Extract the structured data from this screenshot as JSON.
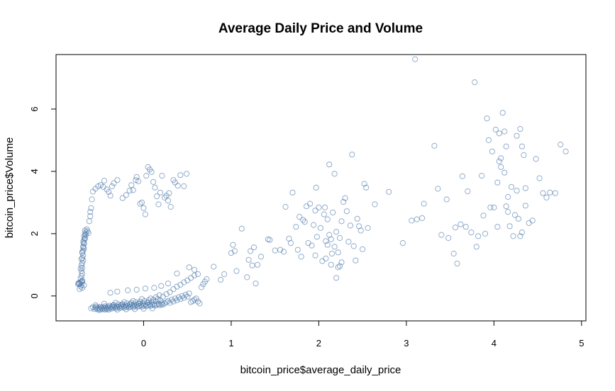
{
  "chart_data": {
    "type": "scatter",
    "title": "Average Daily Price and Volume",
    "xlabel": "bitcoin_price$average_daily_price",
    "ylabel": "bitcoin_price$Volume",
    "xlim": [
      -1.0,
      5.05
    ],
    "ylim": [
      -0.8,
      7.75
    ],
    "xticks": [
      0,
      1,
      2,
      3,
      4,
      5
    ],
    "yticks": [
      0,
      2,
      4,
      6
    ],
    "grid": false,
    "legend": "none",
    "point_color": "#4a77a8",
    "points": [
      [
        -0.74,
        0.42
      ],
      [
        -0.73,
        0.4
      ],
      [
        -0.75,
        0.38
      ],
      [
        -0.72,
        0.44
      ],
      [
        -0.71,
        0.36
      ],
      [
        -0.72,
        0.3
      ],
      [
        -0.7,
        0.26
      ],
      [
        -0.71,
        0.46
      ],
      [
        -0.7,
        0.5
      ],
      [
        -0.72,
        0.56
      ],
      [
        -0.71,
        0.64
      ],
      [
        -0.7,
        0.72
      ],
      [
        -0.71,
        0.8
      ],
      [
        -0.7,
        0.9
      ],
      [
        -0.71,
        0.98
      ],
      [
        -0.7,
        1.06
      ],
      [
        -0.69,
        1.14
      ],
      [
        -0.7,
        1.22
      ],
      [
        -0.69,
        1.3
      ],
      [
        -0.7,
        1.38
      ],
      [
        -0.69,
        1.46
      ],
      [
        -0.68,
        1.52
      ],
      [
        -0.69,
        1.6
      ],
      [
        -0.68,
        1.68
      ],
      [
        -0.69,
        1.74
      ],
      [
        -0.68,
        1.8
      ],
      [
        -0.67,
        1.86
      ],
      [
        -0.68,
        1.92
      ],
      [
        -0.67,
        1.98
      ],
      [
        -0.66,
        2.04
      ],
      [
        -0.67,
        2.1
      ],
      [
        -0.65,
        2.14
      ],
      [
        -0.64,
        2.08
      ],
      [
        -0.63,
        2.02
      ],
      [
        -0.66,
        1.96
      ],
      [
        -0.67,
        1.84
      ],
      [
        -0.68,
        1.7
      ],
      [
        -0.69,
        1.56
      ],
      [
        -0.7,
        1.42
      ],
      [
        -0.71,
        1.18
      ],
      [
        -0.72,
        0.88
      ],
      [
        -0.68,
        0.34
      ],
      [
        -0.73,
        0.22
      ],
      [
        -0.7,
        0.46
      ],
      [
        -0.74,
        0.4
      ],
      [
        -0.62,
        2.4
      ],
      [
        -0.61,
        2.56
      ],
      [
        -0.61,
        2.7
      ],
      [
        -0.6,
        2.82
      ],
      [
        -0.59,
        3.1
      ],
      [
        -0.58,
        3.35
      ],
      [
        -0.55,
        3.44
      ],
      [
        -0.52,
        3.52
      ],
      [
        -0.49,
        3.56
      ],
      [
        -0.46,
        3.5
      ],
      [
        -0.45,
        3.7
      ],
      [
        -0.42,
        3.42
      ],
      [
        -0.4,
        3.34
      ],
      [
        -0.38,
        3.22
      ],
      [
        -0.36,
        3.52
      ],
      [
        -0.34,
        3.62
      ],
      [
        -0.3,
        3.72
      ],
      [
        -0.24,
        3.14
      ],
      [
        -0.2,
        3.24
      ],
      [
        -0.16,
        3.38
      ],
      [
        -0.14,
        3.56
      ],
      [
        -0.12,
        3.4
      ],
      [
        -0.09,
        3.72
      ],
      [
        -0.08,
        3.82
      ],
      [
        -0.06,
        3.68
      ],
      [
        -0.04,
        2.96
      ],
      [
        -0.02,
        3.0
      ],
      [
        0.0,
        2.82
      ],
      [
        0.02,
        2.62
      ],
      [
        0.03,
        3.86
      ],
      [
        0.05,
        4.14
      ],
      [
        0.07,
        4.06
      ],
      [
        0.09,
        3.98
      ],
      [
        0.11,
        3.66
      ],
      [
        0.13,
        3.48
      ],
      [
        0.15,
        3.2
      ],
      [
        0.17,
        2.94
      ],
      [
        0.19,
        3.32
      ],
      [
        0.21,
        3.86
      ],
      [
        0.24,
        3.16
      ],
      [
        0.26,
        3.22
      ],
      [
        0.28,
        3.06
      ],
      [
        0.29,
        3.3
      ],
      [
        0.31,
        2.86
      ],
      [
        0.34,
        3.72
      ],
      [
        0.36,
        3.64
      ],
      [
        0.39,
        3.54
      ],
      [
        0.42,
        3.88
      ],
      [
        0.46,
        3.52
      ],
      [
        0.49,
        3.92
      ],
      [
        -0.6,
        -0.4
      ],
      [
        -0.58,
        -0.36
      ],
      [
        -0.56,
        -0.42
      ],
      [
        -0.55,
        -0.38
      ],
      [
        -0.54,
        -0.34
      ],
      [
        -0.53,
        -0.4
      ],
      [
        -0.52,
        -0.44
      ],
      [
        -0.51,
        -0.37
      ],
      [
        -0.5,
        -0.41
      ],
      [
        -0.49,
        -0.35
      ],
      [
        -0.48,
        -0.39
      ],
      [
        -0.47,
        -0.43
      ],
      [
        -0.46,
        -0.36
      ],
      [
        -0.45,
        -0.4
      ],
      [
        -0.44,
        -0.33
      ],
      [
        -0.43,
        -0.38
      ],
      [
        -0.42,
        -0.42
      ],
      [
        -0.41,
        -0.35
      ],
      [
        -0.4,
        -0.39
      ],
      [
        -0.39,
        -0.31
      ],
      [
        -0.38,
        -0.36
      ],
      [
        -0.37,
        -0.41
      ],
      [
        -0.36,
        -0.34
      ],
      [
        -0.35,
        -0.38
      ],
      [
        -0.34,
        -0.29
      ],
      [
        -0.33,
        -0.35
      ],
      [
        -0.32,
        -0.4
      ],
      [
        -0.31,
        -0.33
      ],
      [
        -0.3,
        -0.37
      ],
      [
        -0.29,
        -0.27
      ],
      [
        -0.28,
        -0.34
      ],
      [
        -0.27,
        -0.39
      ],
      [
        -0.26,
        -0.31
      ],
      [
        -0.25,
        -0.36
      ],
      [
        -0.24,
        -0.26
      ],
      [
        -0.23,
        -0.33
      ],
      [
        -0.22,
        -0.38
      ],
      [
        -0.21,
        -0.3
      ],
      [
        -0.2,
        -0.35
      ],
      [
        -0.19,
        -0.24
      ],
      [
        -0.18,
        -0.32
      ],
      [
        -0.17,
        -0.37
      ],
      [
        -0.16,
        -0.28
      ],
      [
        -0.15,
        -0.34
      ],
      [
        -0.14,
        -0.22
      ],
      [
        -0.13,
        -0.31
      ],
      [
        -0.12,
        -0.36
      ],
      [
        -0.11,
        -0.27
      ],
      [
        -0.1,
        -0.33
      ],
      [
        -0.09,
        -0.2
      ],
      [
        -0.08,
        -0.3
      ],
      [
        -0.07,
        -0.35
      ],
      [
        -0.06,
        -0.25
      ],
      [
        -0.05,
        -0.32
      ],
      [
        -0.04,
        -0.18
      ],
      [
        -0.03,
        -0.29
      ],
      [
        -0.02,
        -0.34
      ],
      [
        -0.01,
        -0.23
      ],
      [
        0.0,
        -0.31
      ],
      [
        0.01,
        -0.16
      ],
      [
        0.02,
        -0.28
      ],
      [
        0.03,
        -0.33
      ],
      [
        0.04,
        -0.21
      ],
      [
        0.05,
        -0.3
      ],
      [
        0.06,
        -0.14
      ],
      [
        0.07,
        -0.27
      ],
      [
        0.08,
        -0.32
      ],
      [
        0.09,
        -0.19
      ],
      [
        0.1,
        -0.29
      ],
      [
        0.11,
        -0.12
      ],
      [
        0.12,
        -0.26
      ],
      [
        0.13,
        -0.31
      ],
      [
        0.14,
        -0.17
      ],
      [
        0.15,
        -0.28
      ],
      [
        0.16,
        -0.1
      ],
      [
        0.17,
        -0.25
      ],
      [
        0.18,
        -0.3
      ],
      [
        0.19,
        -0.15
      ],
      [
        0.2,
        -0.27
      ],
      [
        0.21,
        -0.22
      ],
      [
        0.22,
        -0.28
      ],
      [
        0.24,
        -0.24
      ],
      [
        0.26,
        -0.2
      ],
      [
        0.28,
        -0.16
      ],
      [
        0.3,
        -0.22
      ],
      [
        0.32,
        -0.12
      ],
      [
        0.34,
        -0.18
      ],
      [
        0.36,
        -0.08
      ],
      [
        0.38,
        -0.14
      ],
      [
        0.4,
        -0.04
      ],
      [
        0.42,
        -0.1
      ],
      [
        0.44,
        0.0
      ],
      [
        0.46,
        -0.06
      ],
      [
        0.48,
        0.04
      ],
      [
        0.5,
        -0.02
      ],
      [
        0.52,
        0.08
      ],
      [
        0.54,
        -0.2
      ],
      [
        0.56,
        -0.16
      ],
      [
        0.58,
        -0.12
      ],
      [
        0.6,
        -0.08
      ],
      [
        0.62,
        -0.18
      ],
      [
        0.64,
        -0.24
      ],
      [
        0.66,
        0.28
      ],
      [
        0.68,
        0.38
      ],
      [
        0.7,
        0.46
      ],
      [
        0.72,
        0.54
      ],
      [
        -0.4,
        -0.44
      ],
      [
        -0.44,
        -0.44
      ],
      [
        -0.5,
        -0.45
      ],
      [
        -0.3,
        -0.44
      ],
      [
        -0.2,
        -0.43
      ],
      [
        -0.1,
        -0.42
      ],
      [
        0.0,
        -0.41
      ],
      [
        0.1,
        -0.4
      ],
      [
        -0.35,
        -0.3
      ],
      [
        -0.25,
        -0.28
      ],
      [
        -0.15,
        -0.26
      ],
      [
        -0.05,
        -0.24
      ],
      [
        0.05,
        -0.22
      ],
      [
        -0.55,
        -0.3
      ],
      [
        -0.45,
        -0.25
      ],
      [
        -0.32,
        -0.22
      ],
      [
        -0.22,
        -0.2
      ],
      [
        -0.12,
        -0.16
      ],
      [
        -0.02,
        -0.1
      ],
      [
        0.08,
        -0.08
      ],
      [
        0.14,
        -0.04
      ],
      [
        0.18,
        0.02
      ],
      [
        0.22,
        -0.02
      ],
      [
        0.26,
        0.06
      ],
      [
        0.3,
        0.12
      ],
      [
        0.34,
        0.22
      ],
      [
        0.38,
        0.3
      ],
      [
        0.42,
        0.36
      ],
      [
        0.46,
        0.44
      ],
      [
        0.5,
        0.5
      ],
      [
        0.54,
        0.58
      ],
      [
        0.58,
        0.66
      ],
      [
        0.38,
        0.72
      ],
      [
        0.52,
        0.92
      ],
      [
        0.58,
        0.84
      ],
      [
        0.62,
        0.7
      ],
      [
        -0.38,
        0.1
      ],
      [
        -0.3,
        0.14
      ],
      [
        -0.18,
        0.18
      ],
      [
        -0.08,
        0.2
      ],
      [
        0.02,
        0.24
      ],
      [
        0.12,
        0.26
      ],
      [
        0.2,
        0.32
      ],
      [
        0.28,
        0.4
      ],
      [
        0.8,
        0.94
      ],
      [
        0.88,
        0.52
      ],
      [
        0.92,
        0.7
      ],
      [
        1.0,
        1.38
      ],
      [
        1.02,
        1.64
      ],
      [
        1.04,
        1.44
      ],
      [
        1.06,
        0.8
      ],
      [
        1.12,
        2.16
      ],
      [
        1.18,
        0.6
      ],
      [
        1.2,
        1.16
      ],
      [
        1.22,
        1.44
      ],
      [
        1.24,
        0.98
      ],
      [
        1.26,
        1.56
      ],
      [
        1.28,
        0.4
      ],
      [
        1.3,
        1.0
      ],
      [
        1.34,
        1.26
      ],
      [
        1.42,
        1.82
      ],
      [
        1.44,
        1.8
      ],
      [
        1.5,
        1.46
      ],
      [
        1.56,
        1.48
      ],
      [
        1.6,
        1.42
      ],
      [
        1.62,
        2.86
      ],
      [
        1.66,
        1.84
      ],
      [
        1.68,
        1.7
      ],
      [
        1.7,
        3.32
      ],
      [
        1.74,
        2.22
      ],
      [
        1.76,
        1.48
      ],
      [
        1.78,
        2.54
      ],
      [
        1.8,
        1.26
      ],
      [
        1.82,
        2.44
      ],
      [
        1.84,
        2.38
      ],
      [
        1.86,
        2.88
      ],
      [
        1.88,
        1.7
      ],
      [
        1.9,
        2.96
      ],
      [
        1.92,
        1.62
      ],
      [
        1.94,
        2.28
      ],
      [
        1.96,
        2.74
      ],
      [
        1.97,
        3.48
      ],
      [
        1.98,
        1.9
      ],
      [
        2.0,
        2.84
      ],
      [
        2.02,
        2.18
      ],
      [
        2.04,
        1.12
      ],
      [
        2.06,
        2.62
      ],
      [
        2.07,
        2.84
      ],
      [
        2.08,
        1.76
      ],
      [
        2.1,
        2.46
      ],
      [
        2.12,
        4.22
      ],
      [
        2.14,
        1.82
      ],
      [
        2.15,
        1.36
      ],
      [
        2.16,
        2.68
      ],
      [
        2.18,
        1.58
      ],
      [
        2.2,
        2.06
      ],
      [
        2.22,
        1.4
      ],
      [
        2.24,
        1.86
      ],
      [
        2.26,
        2.4
      ],
      [
        2.28,
        3.02
      ],
      [
        2.3,
        3.14
      ],
      [
        2.32,
        2.72
      ],
      [
        2.34,
        1.74
      ],
      [
        2.36,
        2.26
      ],
      [
        2.38,
        4.54
      ],
      [
        2.4,
        1.6
      ],
      [
        2.42,
        1.14
      ],
      [
        2.44,
        2.48
      ],
      [
        2.46,
        2.24
      ],
      [
        2.48,
        2.1
      ],
      [
        2.5,
        1.5
      ],
      [
        2.52,
        3.6
      ],
      [
        2.54,
        3.48
      ],
      [
        2.56,
        2.18
      ],
      [
        2.22,
        0.92
      ],
      [
        2.24,
        0.96
      ],
      [
        2.26,
        1.08
      ],
      [
        2.2,
        0.58
      ],
      [
        2.18,
        3.92
      ],
      [
        2.12,
        1.96
      ],
      [
        2.14,
        1.0
      ],
      [
        2.1,
        1.64
      ],
      [
        2.08,
        1.2
      ],
      [
        1.96,
        1.3
      ],
      [
        2.64,
        2.94
      ],
      [
        2.8,
        3.34
      ],
      [
        2.96,
        1.7
      ],
      [
        3.06,
        2.42
      ],
      [
        3.1,
        7.6
      ],
      [
        3.12,
        2.46
      ],
      [
        3.18,
        2.5
      ],
      [
        3.2,
        2.96
      ],
      [
        3.32,
        4.82
      ],
      [
        3.36,
        3.44
      ],
      [
        3.4,
        1.96
      ],
      [
        3.46,
        3.1
      ],
      [
        3.48,
        1.86
      ],
      [
        3.54,
        1.36
      ],
      [
        3.56,
        2.2
      ],
      [
        3.58,
        1.04
      ],
      [
        3.62,
        2.3
      ],
      [
        3.64,
        3.84
      ],
      [
        3.68,
        2.22
      ],
      [
        3.7,
        3.36
      ],
      [
        3.74,
        2.04
      ],
      [
        3.78,
        6.86
      ],
      [
        3.8,
        1.58
      ],
      [
        3.82,
        1.92
      ],
      [
        3.86,
        3.86
      ],
      [
        3.88,
        2.58
      ],
      [
        3.92,
        5.7
      ],
      [
        3.94,
        5.0
      ],
      [
        3.96,
        2.84
      ],
      [
        3.98,
        4.64
      ],
      [
        4.0,
        2.84
      ],
      [
        4.02,
        5.34
      ],
      [
        4.04,
        2.22
      ],
      [
        4.06,
        4.32
      ],
      [
        4.08,
        4.14
      ],
      [
        4.1,
        5.88
      ],
      [
        4.12,
        3.96
      ],
      [
        4.14,
        2.88
      ],
      [
        4.16,
        3.18
      ],
      [
        4.18,
        2.24
      ],
      [
        4.2,
        3.5
      ],
      [
        4.22,
        1.92
      ],
      [
        4.24,
        2.6
      ],
      [
        4.26,
        3.38
      ],
      [
        4.28,
        2.48
      ],
      [
        4.3,
        1.92
      ],
      [
        4.32,
        2.04
      ],
      [
        4.34,
        4.52
      ],
      [
        4.36,
        2.9
      ],
      [
        4.4,
        2.34
      ],
      [
        4.44,
        2.42
      ],
      [
        4.48,
        4.4
      ],
      [
        4.52,
        3.78
      ],
      [
        4.56,
        3.3
      ],
      [
        4.6,
        3.16
      ],
      [
        4.64,
        3.32
      ],
      [
        4.7,
        3.3
      ],
      [
        4.76,
        4.86
      ],
      [
        4.82,
        4.64
      ],
      [
        4.04,
        3.64
      ],
      [
        4.12,
        5.28
      ],
      [
        4.14,
        4.8
      ],
      [
        4.26,
        5.14
      ],
      [
        4.3,
        5.36
      ],
      [
        4.32,
        4.8
      ],
      [
        4.06,
        5.22
      ],
      [
        3.9,
        2.0
      ],
      [
        4.08,
        4.42
      ],
      [
        4.16,
        2.7
      ],
      [
        4.36,
        3.46
      ]
    ]
  }
}
